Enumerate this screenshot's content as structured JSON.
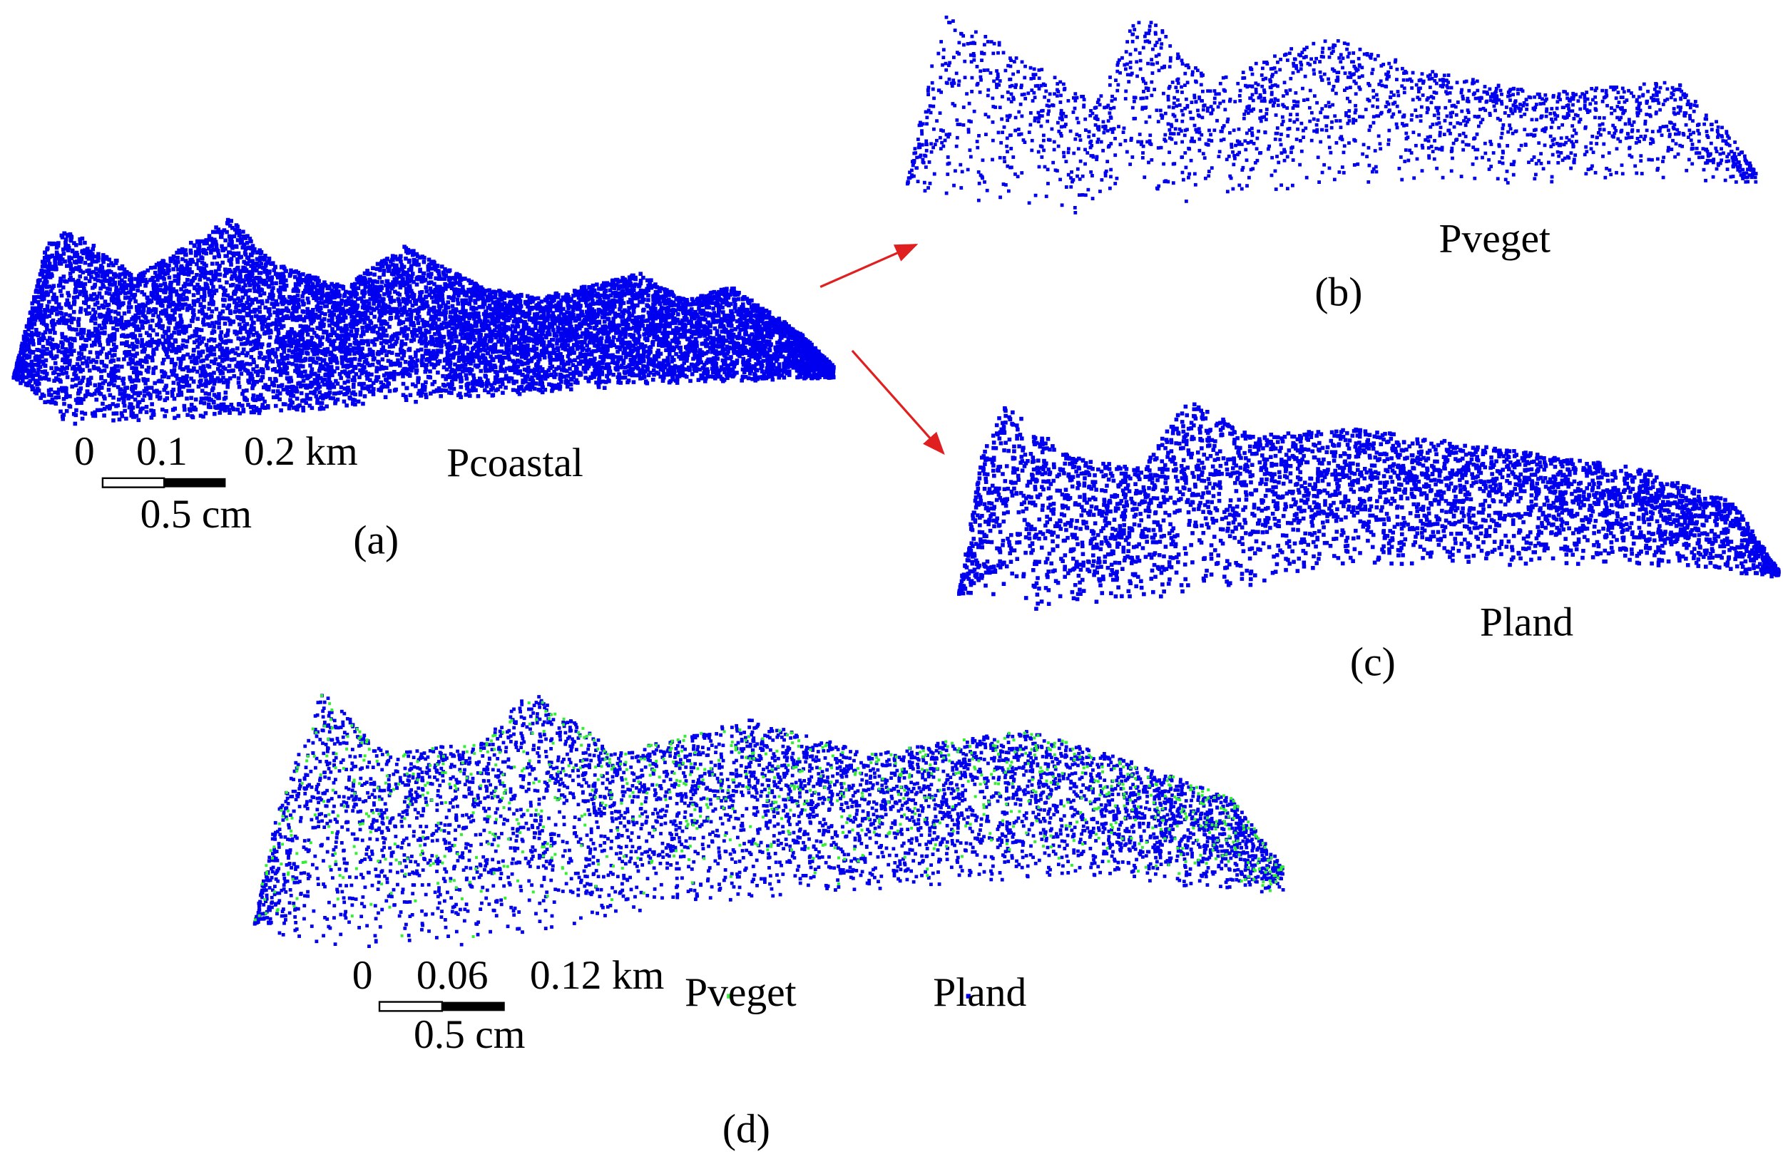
{
  "panels": [
    {
      "label": "(a)",
      "caption": "Pcoastal",
      "scale_ticks": [
        "0",
        "0.1",
        "0.2 km"
      ],
      "scale_length": "0.5 cm"
    },
    {
      "label": "(b)",
      "caption": "Pveget"
    },
    {
      "label": "(c)",
      "caption": "Pland"
    },
    {
      "label": "(d)",
      "scale_ticks": [
        "0",
        "0.06",
        "0.12 km"
      ],
      "scale_length": "0.5 cm",
      "legend": [
        {
          "name": "Pveget",
          "color": "#33ee33"
        },
        {
          "name": "Pland",
          "color": "#0000ee"
        }
      ]
    }
  ]
}
